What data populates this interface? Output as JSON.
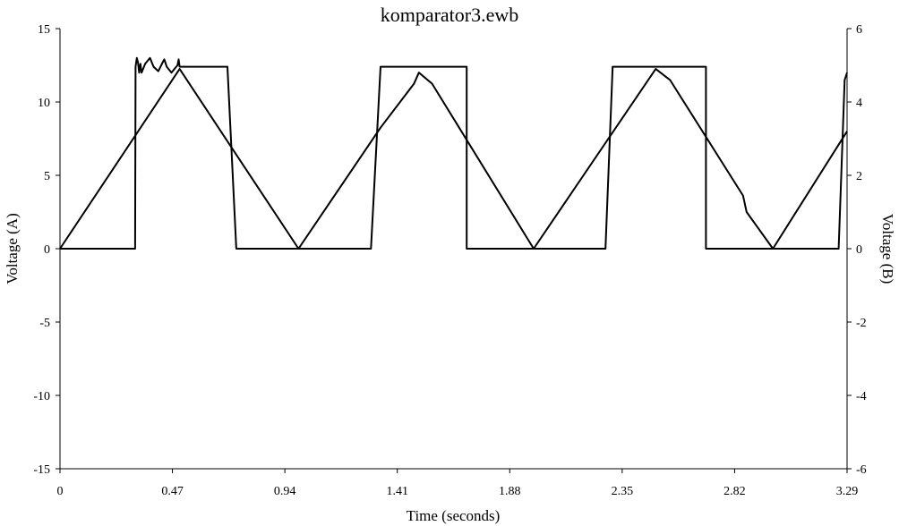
{
  "chart_data": {
    "type": "line",
    "title": "komparator3.ewb",
    "xlabel": "Time (seconds)",
    "ylabel_left": "Voltage (A)",
    "ylabel_right": "Voltage (B)",
    "xlim": [
      0,
      3.29
    ],
    "ylim_left": [
      -15,
      15
    ],
    "ylim_right": [
      -6,
      6
    ],
    "x_ticks": [
      "0",
      "0.47",
      "0.94",
      "1.41",
      "1.88",
      "2.35",
      "2.82",
      "3.29"
    ],
    "y_ticks_left": [
      "15",
      "10",
      "5",
      "0",
      "-5",
      "-10",
      "-15"
    ],
    "y_ticks_right": [
      "6",
      "4",
      "2",
      "0",
      "-2",
      "-4",
      "-6"
    ],
    "grid": false,
    "legend": "none",
    "series": [
      {
        "axis": "left",
        "x": [
          0,
          0.314,
          0.316,
          0.321,
          0.326,
          0.331,
          0.336,
          0.341,
          0.356,
          0.376,
          0.391,
          0.411,
          0.426,
          0.436,
          0.446,
          0.466,
          0.481,
          0.491,
          0.496,
          0.5,
          0.7,
          0.737,
          1.3,
          1.34,
          1.7,
          1.7,
          2.28,
          2.31,
          2.7,
          2.7,
          3.255,
          3.28,
          3.29
        ],
        "y": [
          0,
          0,
          12.4,
          13.0,
          12.7,
          12.0,
          12.6,
          12.0,
          12.6,
          13.0,
          12.4,
          12.1,
          12.6,
          12.9,
          12.4,
          12.0,
          12.3,
          12.5,
          12.9,
          12.4,
          12.4,
          0,
          0,
          12.4,
          12.4,
          0,
          0,
          12.4,
          12.4,
          0,
          0,
          11.5,
          12.0
        ]
      },
      {
        "axis": "right",
        "x": [
          0,
          0.5,
          0.997,
          1.34,
          1.48,
          1.5,
          1.555,
          1.98,
          2.49,
          2.55,
          2.855,
          2.87,
          2.98,
          3.29
        ],
        "y": [
          0,
          4.9,
          0,
          3.3,
          4.5,
          4.8,
          4.5,
          0,
          4.9,
          4.6,
          1.45,
          1.0,
          0,
          3.2
        ]
      }
    ]
  }
}
